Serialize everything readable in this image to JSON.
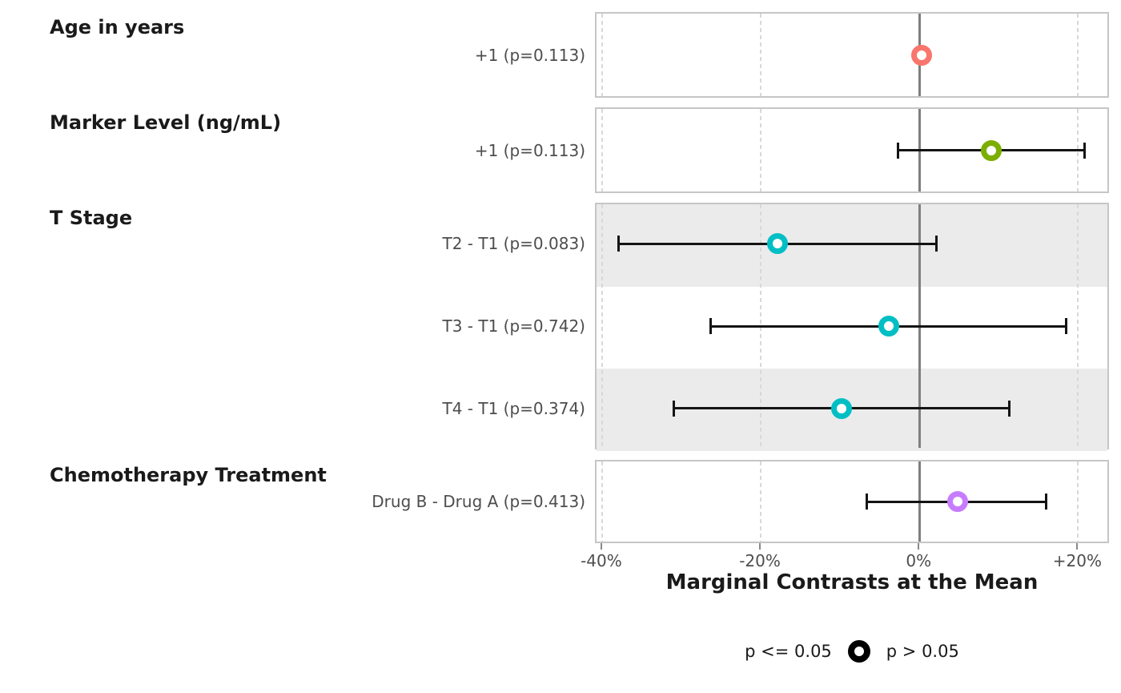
{
  "chart_data": {
    "type": "scatter",
    "subtype": "forest-plot-with-ci",
    "title": "",
    "xlabel": "Marginal Contrasts at the Mean",
    "x_unit": "percent",
    "xlim": [
      -40.8,
      24.0
    ],
    "grid": "dashed-vertical-at-ticks",
    "zero_reference_line": 0,
    "x_ticks": [
      {
        "value": -40,
        "label": "-40%"
      },
      {
        "value": -20,
        "label": "-20%"
      },
      {
        "value": 0,
        "label": "0%"
      },
      {
        "value": 20,
        "label": "+20%"
      }
    ],
    "facets": [
      {
        "label": "Age in years",
        "rows": [
          {
            "label": "+1 (p=0.113)",
            "estimate": 0.4,
            "ci_low": null,
            "ci_high": null,
            "p_value": 0.113,
            "color": "#F8766D"
          }
        ]
      },
      {
        "label": "Marker Level (ng/mL)",
        "rows": [
          {
            "label": "+1 (p=0.113)",
            "estimate": 9.2,
            "ci_low": -2.6,
            "ci_high": 21.0,
            "p_value": 0.113,
            "color": "#7CAE00"
          }
        ]
      },
      {
        "label": "T Stage",
        "rows": [
          {
            "label": "T2 - T1 (p=0.083)",
            "estimate": -17.8,
            "ci_low": -37.9,
            "ci_high": 2.3,
            "p_value": 0.083,
            "color": "#00BFC4"
          },
          {
            "label": "T3 - T1 (p=0.742)",
            "estimate": -3.8,
            "ci_low": -26.3,
            "ci_high": 18.7,
            "p_value": 0.742,
            "color": "#00BFC4"
          },
          {
            "label": "T4 - T1 (p=0.374)",
            "estimate": -9.7,
            "ci_low": -30.9,
            "ci_high": 11.5,
            "p_value": 0.374,
            "color": "#00BFC4"
          }
        ]
      },
      {
        "label": "Chemotherapy Treatment",
        "rows": [
          {
            "label": "Drug B - Drug A (p=0.413)",
            "estimate": 4.9,
            "ci_low": -6.6,
            "ci_high": 16.1,
            "p_value": 0.413,
            "color": "#C77CFF"
          }
        ]
      }
    ],
    "legend": {
      "position": "bottom",
      "items": [
        {
          "label": "p <= 0.05",
          "marker": "none-visible"
        },
        {
          "label": "p > 0.05",
          "marker": "open-ring",
          "marker_color": "#000000"
        }
      ]
    },
    "colors": {
      "stripe": "#ebebeb",
      "panel_border": "#c6c6c6",
      "gridline": "#d8d8d8",
      "zero_line": "#7f7f7f",
      "error_bar": "#141414",
      "label_gray": "#4d4d4d"
    }
  }
}
